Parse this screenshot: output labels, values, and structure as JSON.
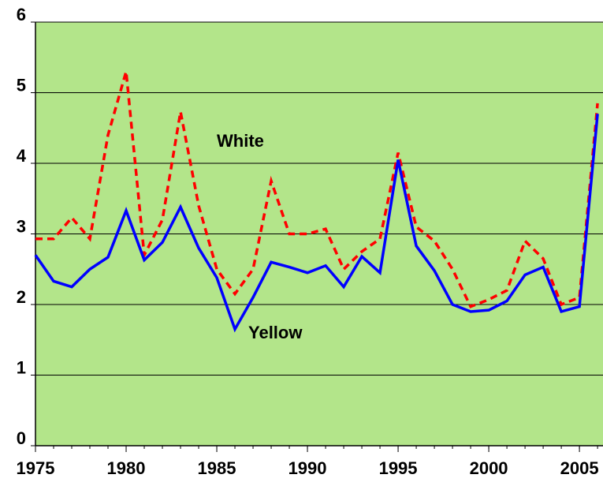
{
  "chart_data": {
    "type": "line",
    "x": [
      1975,
      1976,
      1977,
      1978,
      1979,
      1980,
      1981,
      1982,
      1983,
      1984,
      1985,
      1986,
      1987,
      1988,
      1989,
      1990,
      1991,
      1992,
      1993,
      1994,
      1995,
      1996,
      1997,
      1998,
      1999,
      2000,
      2001,
      2002,
      2003,
      2004,
      2005,
      2006
    ],
    "series": [
      {
        "name": "White",
        "color": "#ff0000",
        "dash": true,
        "values": [
          2.93,
          2.93,
          3.23,
          2.93,
          4.4,
          5.3,
          2.7,
          3.2,
          4.73,
          3.4,
          2.5,
          2.15,
          2.5,
          3.75,
          3.0,
          3.0,
          3.07,
          2.5,
          2.75,
          2.93,
          4.15,
          3.1,
          2.9,
          2.5,
          1.97,
          2.07,
          2.2,
          2.9,
          2.65,
          2.0,
          2.1,
          4.85
        ]
      },
      {
        "name": "Yellow",
        "color": "#0000ff",
        "dash": false,
        "values": [
          2.7,
          2.33,
          2.25,
          2.5,
          2.67,
          3.33,
          2.63,
          2.88,
          3.38,
          2.8,
          2.38,
          1.65,
          2.1,
          2.6,
          2.53,
          2.45,
          2.55,
          2.25,
          2.68,
          2.45,
          4.05,
          2.83,
          2.48,
          2.0,
          1.9,
          1.92,
          2.05,
          2.42,
          2.53,
          1.9,
          1.97,
          4.7
        ]
      }
    ],
    "xlim": [
      1975,
      2006.3
    ],
    "xticks": [
      1975,
      1980,
      1985,
      1990,
      1995,
      2000,
      2005
    ],
    "ylim": [
      0,
      6
    ],
    "yticks": [
      0,
      1,
      2,
      3,
      4,
      5,
      6
    ],
    "grid": true,
    "background": "#b3e58a"
  }
}
